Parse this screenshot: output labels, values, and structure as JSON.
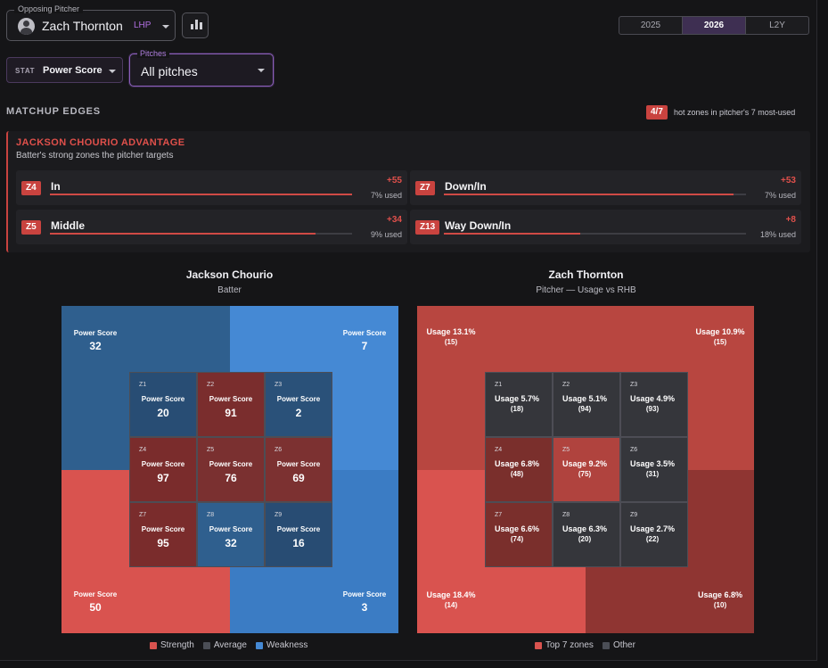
{
  "pitcher_select": {
    "legend": "Opposing Pitcher",
    "name": "Zach Thornton",
    "hand": "LHP"
  },
  "years": [
    {
      "label": "2025",
      "active": false
    },
    {
      "label": "2026",
      "active": true
    },
    {
      "label": "L2Y",
      "active": false
    }
  ],
  "stat_select": {
    "label": "STAT",
    "value": "Power Score"
  },
  "pitch_select": {
    "legend": "Pitches",
    "value": "All pitches"
  },
  "matchup": {
    "title": "MATCHUP EDGES",
    "hot_badge": "4/7",
    "hot_text": "hot zones in pitcher's 7 most-used",
    "advantage_title": "JACKSON CHOURIO ADVANTAGE",
    "advantage_sub": "Batter's strong zones the pitcher targets",
    "cards": [
      {
        "zone": "Z4",
        "name": "In",
        "delta": "+55",
        "used": "7% used",
        "fill": 1.0
      },
      {
        "zone": "Z7",
        "name": "Down/In",
        "delta": "+53",
        "used": "7% used",
        "fill": 0.96
      },
      {
        "zone": "Z5",
        "name": "Middle",
        "delta": "+34",
        "used": "9% used",
        "fill": 0.88
      },
      {
        "zone": "Z13",
        "name": "Way Down/In",
        "delta": "+8",
        "used": "18% used",
        "fill": 0.45
      }
    ]
  },
  "batter_chart": {
    "title": "Jackson Chourio",
    "subtitle": "Batter",
    "outer": [
      {
        "label": "Power Score",
        "value": "32",
        "color": "#2f5f8e"
      },
      {
        "label": "Power Score",
        "value": "7",
        "color": "#4589d4"
      },
      {
        "label": "Power Score",
        "value": "50",
        "color": "#d9534f"
      },
      {
        "label": "Power Score",
        "value": "3",
        "color": "#3b7cc4"
      }
    ],
    "cells": [
      {
        "zone": "Z1",
        "label": "Power Score",
        "value": "20",
        "color": "#284d74"
      },
      {
        "zone": "Z2",
        "label": "Power Score",
        "value": "91",
        "color": "#7a2d2d"
      },
      {
        "zone": "Z3",
        "label": "Power Score",
        "value": "2",
        "color": "#2a5179"
      },
      {
        "zone": "Z4",
        "label": "Power Score",
        "value": "97",
        "color": "#7a2c2c"
      },
      {
        "zone": "Z5",
        "label": "Power Score",
        "value": "76",
        "color": "#7a3030"
      },
      {
        "zone": "Z6",
        "label": "Power Score",
        "value": "69",
        "color": "#7c3131"
      },
      {
        "zone": "Z7",
        "label": "Power Score",
        "value": "95",
        "color": "#7a2c2c"
      },
      {
        "zone": "Z8",
        "label": "Power Score",
        "value": "32",
        "color": "#2f5f8e"
      },
      {
        "zone": "Z9",
        "label": "Power Score",
        "value": "16",
        "color": "#284c73"
      }
    ],
    "legend": [
      {
        "label": "Strength",
        "color": "#d9534f"
      },
      {
        "label": "Average",
        "color": "#4b4e56"
      },
      {
        "label": "Weakness",
        "color": "#4589d4"
      }
    ]
  },
  "pitcher_chart": {
    "title": "Zach Thornton",
    "subtitle": "Pitcher — Usage vs RHB",
    "outer": [
      {
        "usage": "Usage 13.1%",
        "count": "(15)",
        "color": "#b84640"
      },
      {
        "usage": "Usage 10.9%",
        "count": "(15)",
        "color": "#b84640"
      },
      {
        "usage": "Usage 18.4%",
        "count": "(14)",
        "color": "#d9534f"
      },
      {
        "usage": "Usage 6.8%",
        "count": "(10)",
        "color": "#8f3532"
      }
    ],
    "cells": [
      {
        "zone": "Z1",
        "usage": "Usage 5.7%",
        "count": "(18)",
        "color": "#35363b"
      },
      {
        "zone": "Z2",
        "usage": "Usage 5.1%",
        "count": "(94)",
        "color": "#35363b"
      },
      {
        "zone": "Z3",
        "usage": "Usage 4.9%",
        "count": "(93)",
        "color": "#35363b"
      },
      {
        "zone": "Z4",
        "usage": "Usage 6.8%",
        "count": "(48)",
        "color": "#7a2f2c"
      },
      {
        "zone": "Z5",
        "usage": "Usage 9.2%",
        "count": "(75)",
        "color": "#b0433e"
      },
      {
        "zone": "Z6",
        "usage": "Usage 3.5%",
        "count": "(31)",
        "color": "#35363b"
      },
      {
        "zone": "Z7",
        "usage": "Usage 6.6%",
        "count": "(74)",
        "color": "#7a2f2c"
      },
      {
        "zone": "Z8",
        "usage": "Usage 6.3%",
        "count": "(20)",
        "color": "#35363b"
      },
      {
        "zone": "Z9",
        "usage": "Usage 2.7%",
        "count": "(22)",
        "color": "#35363b"
      }
    ],
    "legend": [
      {
        "label": "Top 7 zones",
        "color": "#d9534f"
      },
      {
        "label": "Other",
        "color": "#4b4e56"
      }
    ]
  }
}
